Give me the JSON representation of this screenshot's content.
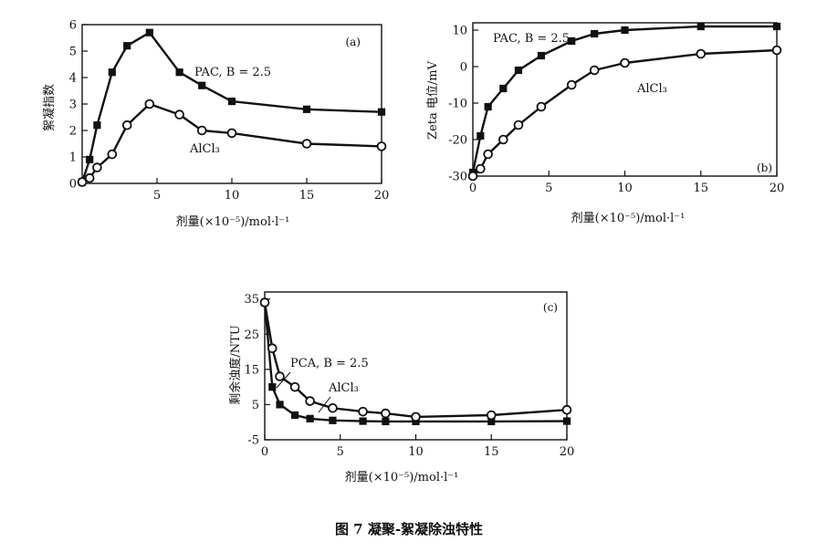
{
  "figure": {
    "caption": "图 7  凝聚-絮凝除浊特性"
  },
  "chart_data": [
    {
      "panel_tag": "(a)",
      "type": "line",
      "xlabel": "剂量(×10⁻⁵)/mol·l⁻¹",
      "ylabel": "絮凝指数",
      "xlim": [
        0,
        20
      ],
      "ylim": [
        0,
        6
      ],
      "xticks": [
        {
          "value": 5,
          "label": "5"
        },
        {
          "value": 10,
          "label": "10"
        },
        {
          "value": 15,
          "label": "15"
        },
        {
          "value": 20,
          "label": "20"
        }
      ],
      "yticks": [
        {
          "value": 0,
          "label": "0"
        },
        {
          "value": 1,
          "label": "1"
        },
        {
          "value": 2,
          "label": "2"
        },
        {
          "value": 3,
          "label": "3"
        },
        {
          "value": 4,
          "label": "4"
        },
        {
          "value": 5,
          "label": "5"
        },
        {
          "value": 6,
          "label": "6"
        }
      ],
      "series": [
        {
          "name": "PAC, B = 2.5",
          "marker": "square",
          "x": [
            0,
            0.5,
            1,
            2,
            3,
            4.5,
            6.5,
            8,
            10,
            15,
            20
          ],
          "y": [
            0.05,
            0.9,
            2.2,
            4.2,
            5.2,
            5.7,
            4.2,
            3.7,
            3.1,
            2.8,
            2.7
          ]
        },
        {
          "name": "AlCl₃",
          "marker": "circle",
          "x": [
            0,
            0.5,
            1,
            2,
            3,
            4.5,
            6.5,
            8,
            10,
            15,
            20
          ],
          "y": [
            0.05,
            0.2,
            0.6,
            1.1,
            2.2,
            3.0,
            2.6,
            2.0,
            1.9,
            1.5,
            1.4
          ]
        }
      ]
    },
    {
      "panel_tag": "(b)",
      "type": "line",
      "xlabel": "剂量(×10⁻⁵)/mol·l⁻¹",
      "ylabel": "Zeta 电位/mV",
      "xlim": [
        0,
        20
      ],
      "ylim": [
        -30,
        12
      ],
      "xticks": [
        {
          "value": 0,
          "label": "0"
        },
        {
          "value": 5,
          "label": "5"
        },
        {
          "value": 10,
          "label": "10"
        },
        {
          "value": 15,
          "label": "15"
        },
        {
          "value": 20,
          "label": "20"
        }
      ],
      "yticks": [
        {
          "value": -30,
          "label": "-30"
        },
        {
          "value": -20,
          "label": "-20"
        },
        {
          "value": -10,
          "label": "-10"
        },
        {
          "value": 0,
          "label": "0"
        },
        {
          "value": 10,
          "label": "10"
        }
      ],
      "series": [
        {
          "name": "PAC, B = 2.5",
          "marker": "square",
          "x": [
            0,
            0.5,
            1,
            2,
            3,
            4.5,
            6.5,
            8,
            10,
            15,
            20
          ],
          "y": [
            -29,
            -19,
            -11,
            -6,
            -1,
            3,
            7,
            9,
            10,
            11,
            11
          ]
        },
        {
          "name": "AlCl₃",
          "marker": "circle",
          "x": [
            0,
            0.5,
            1,
            2,
            3,
            4.5,
            6.5,
            8,
            10,
            15,
            20
          ],
          "y": [
            -30,
            -28,
            -24,
            -20,
            -16,
            -11,
            -5,
            -1,
            1,
            3.5,
            4.5
          ]
        }
      ]
    },
    {
      "panel_tag": "(c)",
      "type": "line",
      "xlabel": "剂量(×10⁻⁵)/mol·l⁻¹",
      "ylabel": "剩余浊度/NTU",
      "xlim": [
        0,
        20
      ],
      "ylim": [
        -5,
        37
      ],
      "xticks": [
        {
          "value": 0,
          "label": "0"
        },
        {
          "value": 5,
          "label": "5"
        },
        {
          "value": 10,
          "label": "10"
        },
        {
          "value": 15,
          "label": "15"
        },
        {
          "value": 20,
          "label": "20"
        }
      ],
      "yticks": [
        {
          "value": -5,
          "label": "-5"
        },
        {
          "value": 5,
          "label": "5"
        },
        {
          "value": 15,
          "label": "15"
        },
        {
          "value": 25,
          "label": "25"
        },
        {
          "value": 35,
          "label": "35"
        }
      ],
      "series": [
        {
          "name": "PCA, B = 2.5",
          "marker": "square",
          "x": [
            0,
            0.5,
            1,
            2,
            3,
            4.5,
            6.5,
            8,
            10,
            15,
            20
          ],
          "y": [
            34,
            10,
            5,
            2,
            1,
            0.5,
            0.3,
            0.2,
            0.2,
            0.2,
            0.3
          ]
        },
        {
          "name": "AlCl₃",
          "marker": "circle",
          "x": [
            0,
            0.5,
            1,
            2,
            3,
            4.5,
            6.5,
            8,
            10,
            15,
            20
          ],
          "y": [
            34,
            21,
            13,
            10,
            6,
            4,
            3,
            2.5,
            1.5,
            2,
            3.5
          ]
        }
      ]
    }
  ]
}
